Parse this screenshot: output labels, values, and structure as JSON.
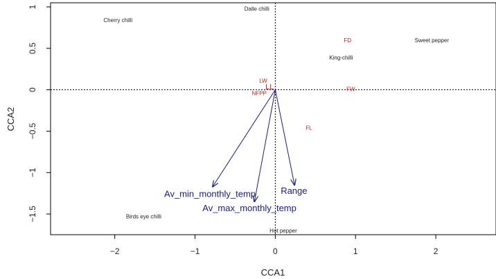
{
  "chart_data": {
    "type": "scatter",
    "xlabel": "CCA1",
    "ylabel": "CCA2",
    "xlim": [
      -2.8,
      2.75
    ],
    "ylim": [
      -1.75,
      1.05
    ],
    "xticks": [
      -2,
      -1,
      0,
      1,
      2
    ],
    "yticks": [
      1.0,
      0.5,
      0.0,
      -0.5,
      -1.0,
      -1.5
    ],
    "reference_lines": {
      "x": 0,
      "y": 0,
      "style": "dotted"
    },
    "sites": [
      {
        "label": "Cherry chilli",
        "x": -1.96,
        "y": 0.84
      },
      {
        "label": "Dalle chilli",
        "x": -0.23,
        "y": 0.98
      },
      {
        "label": "Sweet pepper",
        "x": 1.95,
        "y": 0.6
      },
      {
        "label": "King-chilli",
        "x": 0.82,
        "y": 0.39
      },
      {
        "label": "Birds eye chilli",
        "x": -1.64,
        "y": -1.53
      },
      {
        "label": "Hot pepper",
        "x": 0.1,
        "y": -1.7
      }
    ],
    "species": [
      {
        "label": "FD",
        "x": 0.9,
        "y": 0.6
      },
      {
        "label": "LW",
        "x": -0.15,
        "y": 0.11
      },
      {
        "label": "FW",
        "x": 0.94,
        "y": 0.01
      },
      {
        "label": "NFPP",
        "x": -0.2,
        "y": -0.04
      },
      {
        "label": "FL",
        "x": 0.42,
        "y": -0.46
      },
      {
        "label": "LL",
        "x": -0.07,
        "y": 0.03
      }
    ],
    "vectors": [
      {
        "label": "Av_min_monthly_temp",
        "x": -0.78,
        "y": -1.17
      },
      {
        "label": "Av_max_monthly_temp",
        "x": -0.26,
        "y": -1.35
      },
      {
        "label": "Range",
        "x": 0.24,
        "y": -1.15
      }
    ],
    "colors": {
      "sites": "#222222",
      "species": "#cc2222",
      "vectors": "#1a1a8c",
      "axes": "#000000"
    }
  }
}
